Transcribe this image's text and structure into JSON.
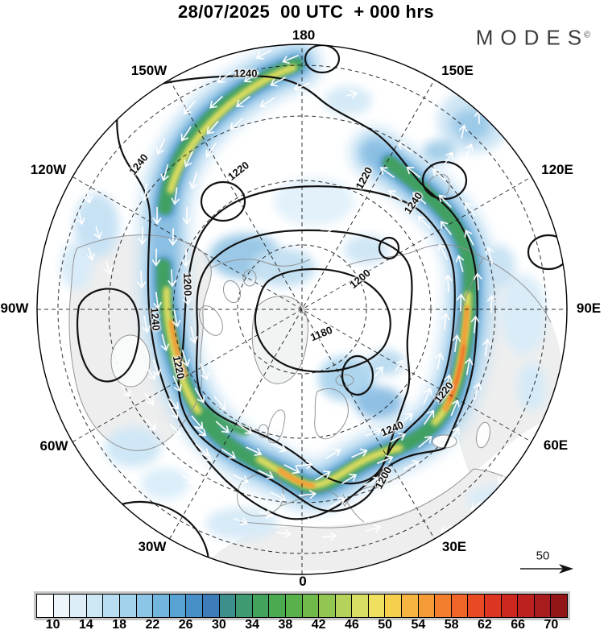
{
  "header": {
    "title": "28/07/2025  00 UTC  + 000 hrs"
  },
  "brand": {
    "name": "MODES",
    "mark": "©"
  },
  "map": {
    "lon_labels": [
      "180",
      "150W",
      "150E",
      "120W",
      "120E",
      "90W",
      "90E",
      "60W",
      "60E",
      "30W",
      "30E",
      "0"
    ],
    "contour_labels": [
      "1240",
      "1240",
      "1220",
      "1200",
      "1180",
      "1200",
      "1240",
      "1220",
      "1220",
      "1240",
      "1220",
      "1240",
      "1200"
    ],
    "contour_values": [
      "1180",
      "1200",
      "1220",
      "1240"
    ],
    "reference_arrow_label": "50"
  },
  "colorbar": {
    "tick_labels": [
      "10",
      "14",
      "18",
      "22",
      "26",
      "30",
      "34",
      "38",
      "42",
      "46",
      "50",
      "54",
      "58",
      "62",
      "66",
      "70"
    ],
    "cell_colors": [
      "#ffffff",
      "#edf6fb",
      "#ddeef8",
      "#cde7f5",
      "#b9ddf1",
      "#a3d2ec",
      "#8cc5e5",
      "#72b5dd",
      "#58a3d3",
      "#4690c7",
      "#3d7cb8",
      "#3d8f8b",
      "#3f9a72",
      "#43a35d",
      "#4ba950",
      "#58b14a",
      "#70ba4b",
      "#92c653",
      "#b5d25b",
      "#d8de62",
      "#efe060",
      "#f6cf4f",
      "#f6b441",
      "#f59b37",
      "#f37f2e",
      "#ef6428",
      "#e84b24",
      "#dc3622",
      "#cd2820",
      "#bc211f",
      "#a91c1d",
      "#921618"
    ]
  },
  "palette": {
    "contour": "#121212",
    "coast": "#8f8f8f",
    "land": "#eeeeee",
    "arrow": "#ffffff",
    "jet_green": "#3fa05c",
    "jet_yellow": "#e9e25f",
    "jet_orange": "#f49b35"
  }
}
